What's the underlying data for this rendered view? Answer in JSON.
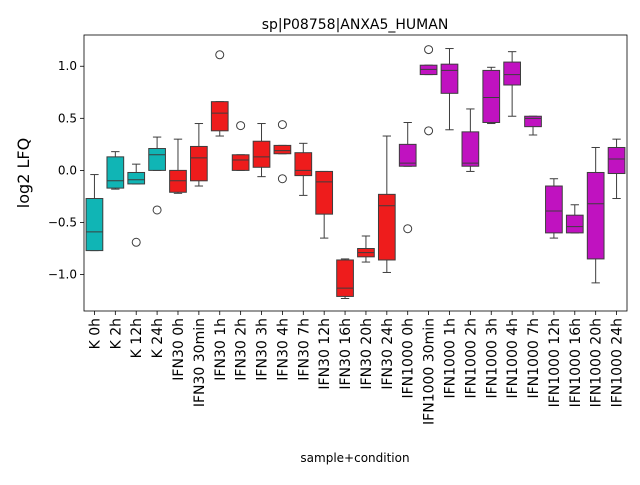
{
  "chart_data": {
    "type": "box",
    "title": "sp|P08758|ANXA5_HUMAN",
    "xlabel": "sample+condition",
    "ylabel": "log2 LFQ",
    "ylim": [
      -1.35,
      1.3
    ],
    "yticks": [
      -1.0,
      -0.5,
      0.0,
      0.5,
      1.0
    ],
    "ytick_labels": [
      "−1.0",
      "−0.5",
      "0.0",
      "0.5",
      "1.0"
    ],
    "colors": {
      "K": "#10b5b5",
      "IFN30": "#ee1c1c",
      "IFN1000": "#c012c0",
      "edge": "#3d3d3d"
    },
    "boxes": [
      {
        "label": "K 0h",
        "group": "K",
        "q1": -0.77,
        "median": -0.59,
        "q3": -0.27,
        "wlo": -0.77,
        "whi": -0.04,
        "fliers": []
      },
      {
        "label": "K 2h",
        "group": "K",
        "q1": -0.17,
        "median": -0.1,
        "q3": 0.13,
        "wlo": -0.18,
        "whi": 0.18,
        "fliers": []
      },
      {
        "label": "K 12h",
        "group": "K",
        "q1": -0.13,
        "median": -0.09,
        "q3": -0.02,
        "wlo": -0.13,
        "whi": 0.06,
        "fliers": [
          -0.69
        ]
      },
      {
        "label": "K 24h",
        "group": "K",
        "q1": 0.0,
        "median": 0.15,
        "q3": 0.21,
        "wlo": 0.0,
        "whi": 0.32,
        "fliers": [
          -0.38
        ]
      },
      {
        "label": "IFN30 0h",
        "group": "IFN30",
        "q1": -0.21,
        "median": -0.1,
        "q3": 0.0,
        "wlo": -0.22,
        "whi": 0.3,
        "fliers": []
      },
      {
        "label": "IFN30 30min",
        "group": "IFN30",
        "q1": -0.1,
        "median": 0.12,
        "q3": 0.23,
        "wlo": -0.15,
        "whi": 0.45,
        "fliers": []
      },
      {
        "label": "IFN30 1h",
        "group": "IFN30",
        "q1": 0.38,
        "median": 0.55,
        "q3": 0.66,
        "wlo": 0.33,
        "whi": 0.66,
        "fliers": [
          1.11
        ]
      },
      {
        "label": "IFN30 2h",
        "group": "IFN30",
        "q1": 0.0,
        "median": 0.1,
        "q3": 0.15,
        "wlo": 0.0,
        "whi": 0.15,
        "fliers": [
          0.43
        ]
      },
      {
        "label": "IFN30 3h",
        "group": "IFN30",
        "q1": 0.03,
        "median": 0.13,
        "q3": 0.28,
        "wlo": -0.06,
        "whi": 0.45,
        "fliers": []
      },
      {
        "label": "IFN30 4h",
        "group": "IFN30",
        "q1": 0.16,
        "median": 0.19,
        "q3": 0.24,
        "wlo": 0.16,
        "whi": 0.24,
        "fliers": [
          0.44,
          -0.08
        ]
      },
      {
        "label": "IFN30 7h",
        "group": "IFN30",
        "q1": -0.05,
        "median": 0.0,
        "q3": 0.17,
        "wlo": -0.24,
        "whi": 0.26,
        "fliers": []
      },
      {
        "label": "IFN30 12h",
        "group": "IFN30",
        "q1": -0.42,
        "median": -0.11,
        "q3": -0.01,
        "wlo": -0.65,
        "whi": -0.01,
        "fliers": []
      },
      {
        "label": "IFN30 16h",
        "group": "IFN30",
        "q1": -1.21,
        "median": -1.13,
        "q3": -0.86,
        "wlo": -1.23,
        "whi": -0.85,
        "fliers": []
      },
      {
        "label": "IFN30 20h",
        "group": "IFN30",
        "q1": -0.83,
        "median": -0.79,
        "q3": -0.75,
        "wlo": -0.88,
        "whi": -0.63,
        "fliers": []
      },
      {
        "label": "IFN30 24h",
        "group": "IFN30",
        "q1": -0.86,
        "median": -0.34,
        "q3": -0.23,
        "wlo": -0.98,
        "whi": 0.33,
        "fliers": []
      },
      {
        "label": "IFN1000 0h",
        "group": "IFN1000",
        "q1": 0.04,
        "median": 0.07,
        "q3": 0.25,
        "wlo": 0.04,
        "whi": 0.46,
        "fliers": [
          -0.56
        ]
      },
      {
        "label": "IFN1000 30min",
        "group": "IFN1000",
        "q1": 0.92,
        "median": 0.97,
        "q3": 1.01,
        "wlo": 0.92,
        "whi": 1.01,
        "fliers": [
          1.16,
          0.38
        ]
      },
      {
        "label": "IFN1000 1h",
        "group": "IFN1000",
        "q1": 0.74,
        "median": 0.96,
        "q3": 1.02,
        "wlo": 0.39,
        "whi": 1.17,
        "fliers": []
      },
      {
        "label": "IFN1000 2h",
        "group": "IFN1000",
        "q1": 0.04,
        "median": 0.07,
        "q3": 0.37,
        "wlo": -0.01,
        "whi": 0.59,
        "fliers": []
      },
      {
        "label": "IFN1000 3h",
        "group": "IFN1000",
        "q1": 0.46,
        "median": 0.7,
        "q3": 0.96,
        "wlo": 0.45,
        "whi": 0.99,
        "fliers": []
      },
      {
        "label": "IFN1000 4h",
        "group": "IFN1000",
        "q1": 0.82,
        "median": 0.92,
        "q3": 1.04,
        "wlo": 0.52,
        "whi": 1.14,
        "fliers": []
      },
      {
        "label": "IFN1000 7h",
        "group": "IFN1000",
        "q1": 0.42,
        "median": 0.5,
        "q3": 0.52,
        "wlo": 0.34,
        "whi": 0.52,
        "fliers": []
      },
      {
        "label": "IFN1000 12h",
        "group": "IFN1000",
        "q1": -0.6,
        "median": -0.39,
        "q3": -0.15,
        "wlo": -0.65,
        "whi": -0.08,
        "fliers": []
      },
      {
        "label": "IFN1000 16h",
        "group": "IFN1000",
        "q1": -0.6,
        "median": -0.54,
        "q3": -0.43,
        "wlo": -0.6,
        "whi": -0.33,
        "fliers": []
      },
      {
        "label": "IFN1000 20h",
        "group": "IFN1000",
        "q1": -0.85,
        "median": -0.32,
        "q3": -0.02,
        "wlo": -1.08,
        "whi": 0.22,
        "fliers": []
      },
      {
        "label": "IFN1000 24h",
        "group": "IFN1000",
        "q1": -0.03,
        "median": 0.11,
        "q3": 0.22,
        "wlo": -0.27,
        "whi": 0.3,
        "fliers": []
      }
    ]
  }
}
